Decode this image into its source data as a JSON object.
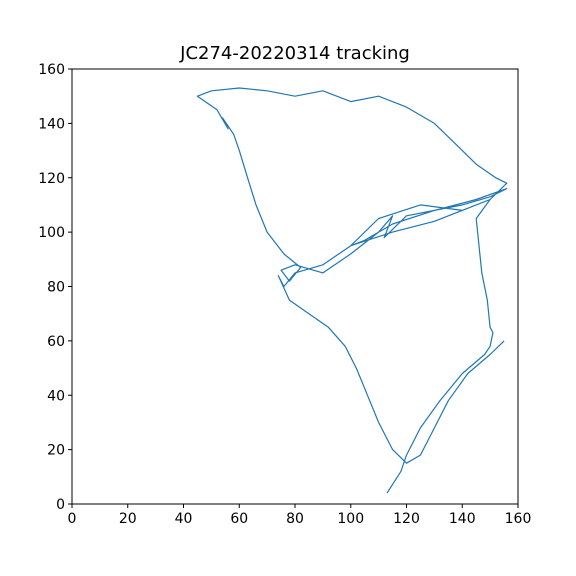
{
  "chart_data": {
    "type": "line",
    "title": "JC274-20220314 tracking",
    "x": [
      113,
      118,
      120,
      125,
      132,
      140,
      148,
      150,
      151,
      150,
      149,
      147,
      146,
      145,
      150,
      156,
      152,
      145,
      138,
      130,
      120,
      110,
      100,
      95,
      90,
      80,
      70,
      60,
      50,
      45,
      52,
      56,
      54,
      58,
      60,
      63,
      66,
      70,
      76,
      82,
      78,
      75,
      80,
      90,
      100,
      110,
      115,
      112,
      120,
      130,
      140,
      150,
      156,
      145,
      130,
      115,
      105,
      100,
      110,
      125,
      140,
      150,
      145,
      130,
      115,
      100,
      90,
      80,
      76,
      74,
      78,
      85,
      92,
      98,
      102,
      106,
      110,
      115,
      120,
      125,
      130,
      135,
      142,
      150,
      155
    ],
    "values": [
      4,
      12,
      18,
      28,
      38,
      48,
      55,
      58,
      63,
      65,
      75,
      85,
      95,
      105,
      112,
      118,
      120,
      125,
      132,
      140,
      146,
      150,
      148,
      150,
      152,
      150,
      152,
      153,
      152,
      150,
      145,
      138,
      142,
      136,
      130,
      120,
      110,
      100,
      92,
      87,
      82,
      86,
      88,
      85,
      92,
      100,
      106,
      98,
      106,
      108,
      110,
      113,
      116,
      112,
      108,
      103,
      97,
      95,
      105,
      110,
      108,
      112,
      110,
      104,
      100,
      95,
      88,
      85,
      80,
      84,
      75,
      70,
      65,
      58,
      50,
      40,
      30,
      20,
      15,
      18,
      28,
      38,
      48,
      55,
      60
    ],
    "color": "#1f77b4",
    "xlim": [
      0,
      160
    ],
    "xticks": [
      0,
      20,
      40,
      60,
      80,
      100,
      120,
      140,
      160
    ],
    "ylim": [
      0,
      160
    ],
    "yticks": [
      0,
      20,
      40,
      60,
      80,
      100,
      120,
      140,
      160
    ]
  }
}
